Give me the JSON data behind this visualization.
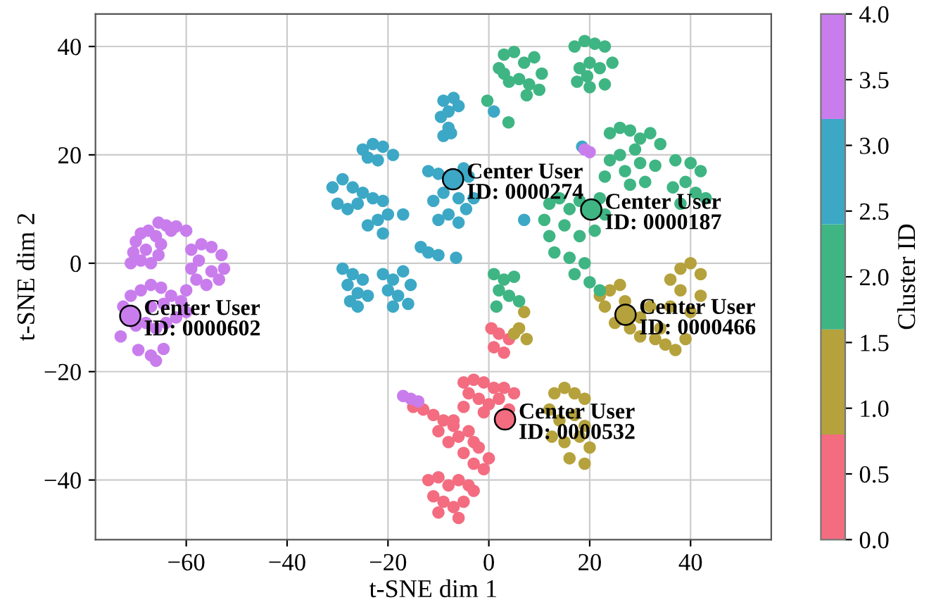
{
  "chart_data": {
    "type": "scatter",
    "xlabel": "t-SNE dim 1",
    "ylabel": "t-SNE dim 2",
    "clabel": "Cluster ID",
    "marker": "circle",
    "grid": true,
    "xlim": [
      -78,
      56
    ],
    "ylim": [
      -51,
      46
    ],
    "xticks": [
      {
        "value": -60,
        "label": "−60"
      },
      {
        "value": -40,
        "label": "−40"
      },
      {
        "value": -20,
        "label": "−20"
      },
      0,
      20,
      40
    ],
    "yticks": [
      {
        "value": -40,
        "label": "−40"
      },
      {
        "value": -20,
        "label": "−20"
      },
      0,
      20,
      40
    ],
    "clim": [
      0,
      4
    ],
    "cticks": [
      {
        "value": 0,
        "label": "0.0"
      },
      {
        "value": 0.5,
        "label": "0.5"
      },
      {
        "value": 1,
        "label": "1.0"
      },
      {
        "value": 1.5,
        "label": "1.5"
      },
      {
        "value": 2,
        "label": "2.0"
      },
      {
        "value": 2.5,
        "label": "2.5"
      },
      {
        "value": 3,
        "label": "3.0"
      },
      {
        "value": 3.5,
        "label": "3.5"
      },
      {
        "value": 4,
        "label": "4.0"
      }
    ],
    "series": [
      {
        "color": "#f36c80",
        "x": [
          0.5,
          2,
          4,
          1,
          3,
          -5,
          -3,
          -1,
          1,
          3,
          5,
          -4,
          -2,
          0,
          2,
          4,
          -5,
          -1,
          -15,
          -13,
          -11,
          -9,
          -7,
          -10,
          -8,
          -6,
          -4,
          -3,
          -5,
          -2,
          0,
          -3,
          -1,
          -7,
          -12,
          -10,
          -8,
          -6,
          -4,
          -11,
          -9,
          -7,
          -5,
          -3,
          -10,
          -6
        ],
        "values": [
          -12,
          -13,
          -14,
          -15.5,
          -16.5,
          -22,
          -21.5,
          -22,
          -23,
          -23,
          -24,
          -24,
          -25,
          -26,
          -25,
          -27,
          -26.5,
          -27.5,
          -26.5,
          -27,
          -28,
          -29,
          -30,
          -31,
          -33,
          -32,
          -31,
          -33,
          -35,
          -34,
          -36,
          -37,
          -38,
          -29,
          -40,
          -39.5,
          -41,
          -40,
          -41,
          -43,
          -44,
          -45,
          -44,
          -42,
          -46,
          -47
        ]
      },
      {
        "color": "#b5a23c",
        "x": [
          22,
          24,
          23,
          25,
          28,
          30,
          32,
          34,
          35,
          37,
          39,
          40,
          42,
          38,
          36,
          38,
          40,
          42,
          36,
          33,
          30,
          27,
          26,
          13,
          15,
          17,
          19,
          12,
          14,
          17,
          19,
          12.5,
          15,
          18,
          20,
          16,
          19,
          7,
          6,
          7.5,
          5
        ],
        "values": [
          -6,
          -5,
          -8,
          -11,
          -12,
          -10,
          -8,
          -12,
          -15,
          -16,
          -14,
          -9,
          -6,
          -5,
          -3,
          -1,
          0,
          -2,
          -8,
          -14,
          -13.5,
          -7,
          -4,
          -24,
          -23,
          -24,
          -25,
          -27,
          -29,
          -28,
          -30,
          -32,
          -33,
          -32,
          -34,
          -36,
          -37,
          -9,
          -12,
          -14,
          -13
        ]
      },
      {
        "color": "#3fb583",
        "x": [
          2,
          3,
          5,
          7,
          9,
          10.5,
          8,
          6,
          4,
          3,
          7.5,
          10,
          17,
          19,
          21,
          23,
          24.5,
          22,
          20,
          18,
          17.5,
          20,
          23,
          19.5,
          -0.3,
          3.9,
          24,
          26,
          28,
          30,
          32,
          34,
          29,
          26,
          24,
          27,
          30,
          33,
          31,
          28,
          23,
          37,
          40,
          42,
          39,
          36.5,
          41,
          38,
          43,
          12,
          14,
          16,
          18,
          22,
          23,
          21,
          18,
          15,
          12,
          13,
          16,
          19,
          17,
          20,
          22,
          11,
          1,
          3,
          5,
          2,
          4,
          6,
          1.5
        ],
        "values": [
          36,
          38.5,
          39,
          37,
          38,
          35,
          33,
          34,
          33.5,
          35,
          31,
          32,
          40,
          41,
          40.5,
          40,
          37,
          36,
          37,
          36,
          33.5,
          32.5,
          33,
          34.5,
          30,
          26,
          24,
          25,
          24.5,
          23,
          24,
          22,
          21,
          20,
          19,
          17,
          18.5,
          18,
          15,
          14.5,
          16,
          19,
          18.5,
          17,
          15,
          14,
          13,
          11,
          12,
          11,
          12,
          10,
          11.5,
          12,
          9,
          6,
          5,
          7,
          5,
          2,
          1,
          0,
          -2,
          -3.5,
          -5,
          8,
          -2,
          -3,
          -2.5,
          -5,
          -6,
          -7,
          -8
        ]
      },
      {
        "color": "#3ca8c6",
        "x": [
          -9,
          -7,
          -6,
          -8,
          -9.5,
          -8,
          -9,
          -7.5,
          -25,
          -23,
          -21,
          -19,
          -22,
          -24,
          -31,
          -29,
          -27,
          -25,
          -30,
          -28,
          -26,
          -23,
          -21,
          -20,
          -22,
          -24,
          -21,
          -17,
          -12,
          -10,
          -5,
          -4,
          -9,
          -11,
          -6,
          -4.5,
          -8,
          -10,
          -6,
          -3,
          -13.5,
          -12,
          -10,
          -6.5,
          -29,
          -27,
          -28,
          -26,
          -25,
          -27.5,
          -24,
          -26,
          -21,
          -19,
          -17,
          -20,
          -18,
          -15.5,
          -19,
          -16,
          1,
          7,
          18.5
        ],
        "values": [
          30,
          30.5,
          29,
          28,
          27,
          25,
          23.5,
          24,
          21,
          22,
          21.5,
          20,
          19,
          19.5,
          14,
          15.5,
          14,
          13,
          11,
          10,
          11,
          12,
          11.5,
          9,
          8,
          7,
          5.5,
          9,
          17,
          16.5,
          17.5,
          16,
          13,
          11.5,
          12,
          10,
          9,
          8,
          7.5,
          12,
          3,
          2,
          1.5,
          1,
          -1,
          -2,
          -4,
          -5.5,
          -3,
          -7,
          -6,
          -8,
          -2,
          -3,
          -1.5,
          -5,
          -6,
          -4,
          -8,
          -7.5,
          28,
          8,
          21.5
        ]
      },
      {
        "color": "#c97ded",
        "x": [
          -70,
          -69,
          -67.5,
          -66,
          -65,
          -65.5,
          -67,
          -69,
          -70.5,
          -68,
          -71,
          -65.5,
          -64,
          -62,
          -60,
          -63,
          -59,
          -57,
          -55,
          -53,
          -52.5,
          -53.5,
          -56,
          -58,
          -59,
          -57.5,
          -55,
          -72.5,
          -71,
          -69,
          -67,
          -65,
          -63,
          -61,
          -60,
          -62,
          -64,
          -66,
          -68,
          -70,
          -73,
          -67,
          -64.5,
          -60,
          -69.5,
          -67,
          -66,
          -64.5,
          -17,
          -15.5,
          -14,
          19,
          20
        ],
        "values": [
          4,
          5.5,
          6,
          5,
          3.5,
          1.5,
          0,
          0.5,
          2,
          2.5,
          0,
          7.5,
          7,
          6.8,
          6,
          6,
          2.5,
          3.5,
          3,
          1.5,
          -1,
          -3,
          -4,
          -3,
          -1,
          0.5,
          -1.5,
          -8,
          -6,
          -5,
          -4,
          -4.5,
          -6,
          -7,
          -9,
          -10,
          -11,
          -12,
          -11,
          -11.5,
          -13.5,
          -8,
          -7.5,
          -5,
          -16,
          -17,
          -18,
          -15.8,
          -24.5,
          -25,
          -25.5,
          21,
          20.5
        ]
      },
      {
        "x": [
          -7.1,
          20.3,
          27.1,
          -71.1,
          3.2
        ],
        "values": [
          15.5,
          9.9,
          -9.5,
          -9.7,
          -28.8
        ],
        "colors": [
          "#3ca8c6",
          "#3fb583",
          "#b5a23c",
          "#c97ded",
          "#f36c80"
        ]
      }
    ],
    "annotations": [
      {
        "text": "Center User\nID: 0000274",
        "x": -7.1,
        "y": 15.5
      },
      {
        "text": "Center User\nID: 0000187",
        "x": 20.3,
        "y": 9.9
      },
      {
        "text": "Center User\nID: 0000466",
        "x": 27.1,
        "y": -9.5
      },
      {
        "text": "Center User\nID: 0000602",
        "x": -71.1,
        "y": -9.7
      },
      {
        "text": "Center User\nID: 0000532",
        "x": 3.2,
        "y": -28.8
      }
    ]
  }
}
